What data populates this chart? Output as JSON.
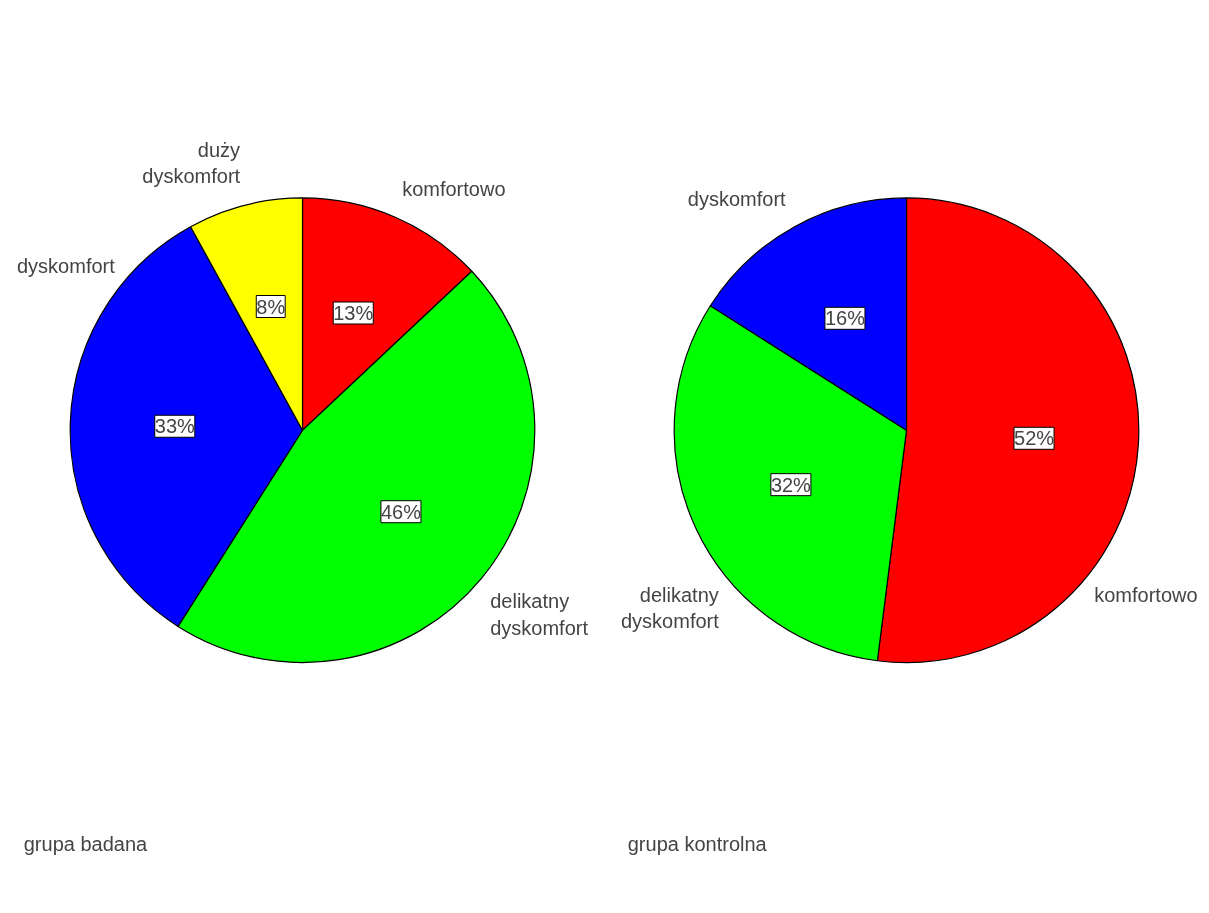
{
  "chart_data": [
    {
      "type": "pie",
      "title": "grupa badana",
      "categories": [
        "komfortowo",
        "delikatny dyskomfort",
        "dyskomfort",
        "duży dyskomfort"
      ],
      "values": [
        13,
        46,
        33,
        8
      ],
      "colors": [
        "#ff0000",
        "#00ff00",
        "#0000ff",
        "#ffff00"
      ],
      "value_labels": [
        "13%",
        "46%",
        "33%",
        "8%"
      ]
    },
    {
      "type": "pie",
      "title": "grupa kontrolna",
      "categories": [
        "komfortowo",
        "delikatny dyskomfort",
        "dyskomfort"
      ],
      "values": [
        52,
        32,
        16
      ],
      "colors": [
        "#ff0000",
        "#00ff00",
        "#0000ff"
      ],
      "value_labels": [
        "52%",
        "32%",
        "16%"
      ]
    }
  ]
}
